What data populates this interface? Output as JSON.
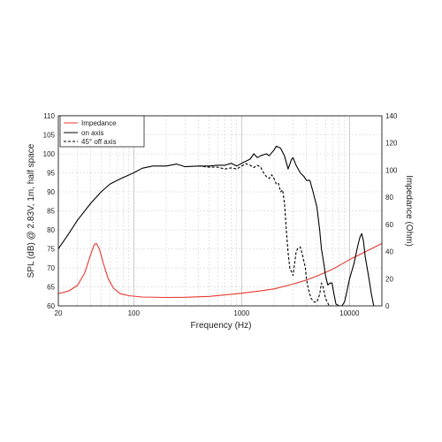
{
  "chart_data": {
    "type": "line",
    "xlabel": "Frequency (Hz)",
    "ylabel_left": "SPL (dB) @ 2.83V, 1m, half space",
    "ylabel_right": "Impedance (Ohm)",
    "x_scale": "log",
    "xlim": [
      20,
      20000
    ],
    "ylim_left": [
      60,
      110
    ],
    "ylim_right": [
      0,
      140
    ],
    "x_ticks": [
      20,
      100,
      1000,
      10000
    ],
    "x_tick_labels": [
      "20",
      "100",
      "1000",
      "10000"
    ],
    "y_ticks_left": [
      60,
      65,
      70,
      75,
      80,
      85,
      90,
      95,
      100,
      105,
      110
    ],
    "y_ticks_right": [
      0,
      20,
      40,
      60,
      80,
      100,
      120,
      140
    ],
    "grid": true,
    "legend_position": "top-left",
    "series": [
      {
        "name": "Impedance",
        "axis": "right",
        "style": "solid",
        "color": "#e8372c",
        "points": [
          [
            20,
            9
          ],
          [
            25,
            11
          ],
          [
            30,
            15
          ],
          [
            35,
            24
          ],
          [
            40,
            38
          ],
          [
            43,
            45
          ],
          [
            45,
            46
          ],
          [
            48,
            42
          ],
          [
            52,
            32
          ],
          [
            58,
            20
          ],
          [
            65,
            13
          ],
          [
            75,
            9
          ],
          [
            90,
            7.5
          ],
          [
            120,
            6.5
          ],
          [
            200,
            6.2
          ],
          [
            300,
            6.3
          ],
          [
            500,
            7
          ],
          [
            800,
            8.5
          ],
          [
            1000,
            9.3
          ],
          [
            1500,
            11
          ],
          [
            2000,
            12.5
          ],
          [
            3000,
            16
          ],
          [
            4000,
            19
          ],
          [
            5000,
            22
          ],
          [
            7000,
            27
          ],
          [
            10000,
            34
          ],
          [
            15000,
            41
          ],
          [
            20000,
            46
          ]
        ]
      },
      {
        "name": "on axis",
        "axis": "left",
        "style": "solid",
        "color": "#000000",
        "points": [
          [
            20,
            75
          ],
          [
            25,
            79
          ],
          [
            30,
            82.5
          ],
          [
            40,
            87
          ],
          [
            50,
            90
          ],
          [
            60,
            92
          ],
          [
            70,
            93
          ],
          [
            80,
            93.8
          ],
          [
            100,
            95
          ],
          [
            120,
            96.2
          ],
          [
            150,
            96.8
          ],
          [
            200,
            96.8
          ],
          [
            250,
            97.3
          ],
          [
            300,
            96.6
          ],
          [
            400,
            96.8
          ],
          [
            500,
            96.8
          ],
          [
            600,
            97
          ],
          [
            700,
            97
          ],
          [
            800,
            97.5
          ],
          [
            900,
            96.8
          ],
          [
            1000,
            97.5
          ],
          [
            1200,
            98.6
          ],
          [
            1300,
            100
          ],
          [
            1400,
            99
          ],
          [
            1500,
            99.5
          ],
          [
            1700,
            100
          ],
          [
            1800,
            99.5
          ],
          [
            2000,
            101
          ],
          [
            2100,
            102
          ],
          [
            2300,
            101.5
          ],
          [
            2500,
            99.5
          ],
          [
            2700,
            96
          ],
          [
            2900,
            98.5
          ],
          [
            3000,
            99
          ],
          [
            3200,
            97
          ],
          [
            3500,
            95
          ],
          [
            3800,
            94
          ],
          [
            4000,
            93
          ],
          [
            4300,
            93
          ],
          [
            4600,
            90
          ],
          [
            5000,
            86
          ],
          [
            5300,
            80
          ],
          [
            5500,
            75
          ],
          [
            5800,
            71
          ],
          [
            6000,
            68
          ],
          [
            6300,
            65.5
          ],
          [
            6600,
            66
          ],
          [
            6900,
            66
          ],
          [
            7200,
            63
          ],
          [
            7500,
            60.5
          ],
          [
            8000,
            60
          ],
          [
            8500,
            60
          ],
          [
            9000,
            61
          ],
          [
            9500,
            64
          ],
          [
            10000,
            67
          ],
          [
            11000,
            71
          ],
          [
            12000,
            76
          ],
          [
            12500,
            78
          ],
          [
            13000,
            79
          ],
          [
            13500,
            77
          ],
          [
            14000,
            73
          ],
          [
            15000,
            68
          ],
          [
            16000,
            63
          ],
          [
            16800,
            60
          ]
        ]
      },
      {
        "name": "45° off axis",
        "axis": "left",
        "style": "dashed",
        "color": "#000000",
        "points": [
          [
            400,
            96.8
          ],
          [
            500,
            96.5
          ],
          [
            600,
            96.5
          ],
          [
            700,
            96
          ],
          [
            800,
            96.3
          ],
          [
            900,
            96
          ],
          [
            1000,
            96.8
          ],
          [
            1100,
            97.4
          ],
          [
            1200,
            97
          ],
          [
            1300,
            96.4
          ],
          [
            1400,
            97
          ],
          [
            1500,
            96.5
          ],
          [
            1600,
            95
          ],
          [
            1700,
            94
          ],
          [
            1800,
            93.5
          ],
          [
            1900,
            94.5
          ],
          [
            2000,
            93.5
          ],
          [
            2100,
            92
          ],
          [
            2200,
            92.2
          ],
          [
            2300,
            90
          ],
          [
            2400,
            90.5
          ],
          [
            2500,
            87
          ],
          [
            2600,
            80
          ],
          [
            2700,
            74
          ],
          [
            2800,
            70
          ],
          [
            2900,
            69
          ],
          [
            3000,
            68
          ],
          [
            3100,
            71
          ],
          [
            3200,
            74
          ],
          [
            3300,
            75
          ],
          [
            3500,
            75.5
          ],
          [
            3700,
            73
          ],
          [
            3900,
            70
          ],
          [
            4000,
            67
          ],
          [
            4200,
            64
          ],
          [
            4400,
            62
          ],
          [
            4700,
            61
          ],
          [
            5000,
            61
          ],
          [
            5300,
            63
          ],
          [
            5500,
            66
          ],
          [
            5700,
            65
          ],
          [
            6000,
            62
          ],
          [
            6500,
            60
          ],
          [
            7000,
            60
          ]
        ]
      }
    ]
  }
}
